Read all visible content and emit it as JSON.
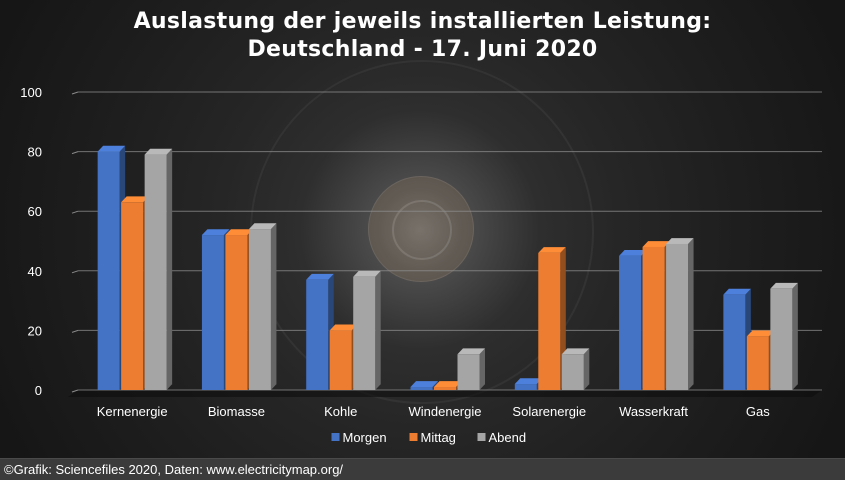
{
  "title_line1": "Auslastung der jeweils installierten Leistung:",
  "title_line2": "Deutschland - 17. Juni 2020",
  "footer_text": "©Grafik: Sciencefiles 2020, Daten: www.electricitymap.org/",
  "chart_data": {
    "type": "bar",
    "title": "Auslastung der jeweils installierten Leistung: Deutschland - 17. Juni 2020",
    "categories": [
      "Kernenergie",
      "Biomasse",
      "Kohle",
      "Windenergie",
      "Solarenergie",
      "Wasserkraft",
      "Gas"
    ],
    "series": [
      {
        "name": "Morgen",
        "color": "#4472c4",
        "values": [
          80,
          52,
          37,
          1,
          2,
          45,
          32
        ]
      },
      {
        "name": "Mittag",
        "color": "#ed7d31",
        "values": [
          63,
          52,
          20,
          1,
          46,
          48,
          18
        ]
      },
      {
        "name": "Abend",
        "color": "#a5a5a5",
        "values": [
          79,
          54,
          38,
          12,
          12,
          49,
          34
        ]
      }
    ],
    "yticks": [
      0,
      20,
      40,
      60,
      80,
      100
    ],
    "ylim": [
      0,
      100
    ],
    "grid": true,
    "legend_position": "bottom",
    "xlabel": "",
    "ylabel": ""
  }
}
